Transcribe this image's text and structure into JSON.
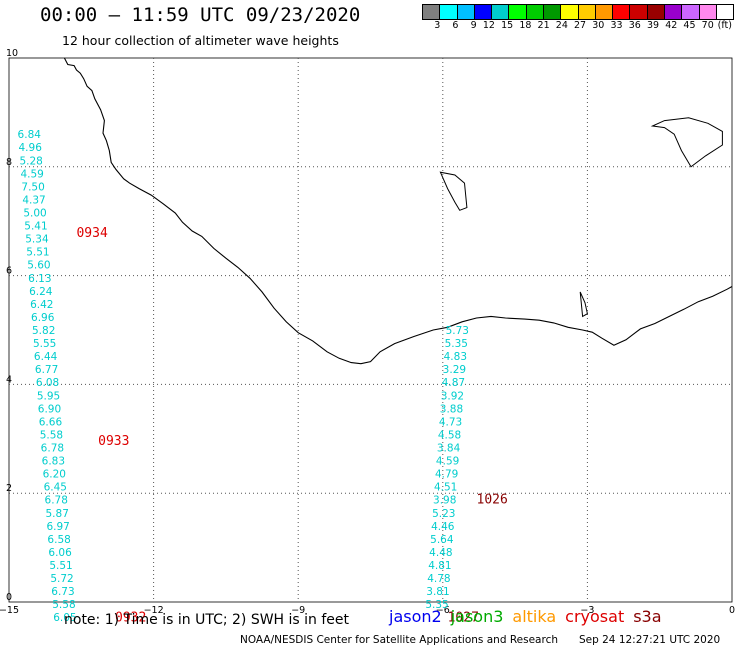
{
  "header": {
    "title": "00:00 – 11:59 UTC 09/23/2020",
    "subtitle": "12 hour collection of altimeter wave heights"
  },
  "color_scale": {
    "colors": [
      "#7f7f7f",
      "#00ffff",
      "#00bfff",
      "#0000ff",
      "#00cdcd",
      "#00ff00",
      "#00cc00",
      "#009900",
      "#ffff00",
      "#ffcc00",
      "#ff9900",
      "#ff0000",
      "#cc0000",
      "#990000",
      "#9900cc",
      "#cc66ff",
      "#ff88ee",
      "#ffffff"
    ],
    "labels": [
      "3",
      "6",
      "9",
      "12",
      "15",
      "18",
      "21",
      "24",
      "27",
      "30",
      "33",
      "36",
      "39",
      "42",
      "45",
      "70",
      "(ft)"
    ]
  },
  "axes": {
    "x_ticks": [
      "−15",
      "−12",
      "−9",
      "−6",
      "−3",
      "0"
    ],
    "x_values": [
      -15,
      -12,
      -9,
      -6,
      -3,
      0
    ],
    "y_ticks": [
      "0",
      "2",
      "4",
      "6",
      "8",
      "10"
    ],
    "y_values": [
      0,
      2,
      4,
      6,
      8,
      10
    ],
    "x_range": [
      -15,
      0
    ],
    "y_range": [
      0,
      10
    ]
  },
  "tracks": [
    {
      "satellite": "jason3",
      "color": "#00cdcd",
      "points": [
        {
          "lon": -14.58,
          "lat": 8.6,
          "swh": "6.84"
        },
        {
          "lon": -14.56,
          "lat": 8.36,
          "swh": "4.96"
        },
        {
          "lon": -14.54,
          "lat": 8.12,
          "swh": "5.28"
        },
        {
          "lon": -14.52,
          "lat": 7.88,
          "swh": "4.59"
        },
        {
          "lon": -14.5,
          "lat": 7.64,
          "swh": "7.50"
        },
        {
          "lon": -14.48,
          "lat": 7.4,
          "swh": "4.37"
        },
        {
          "lon": -14.46,
          "lat": 7.16,
          "swh": "5.00"
        },
        {
          "lon": -14.44,
          "lat": 6.92,
          "swh": "5.41"
        },
        {
          "lon": -14.42,
          "lat": 6.68,
          "swh": "5.34"
        },
        {
          "lon": -14.4,
          "lat": 6.44,
          "swh": "5.51"
        },
        {
          "lon": -14.38,
          "lat": 6.2,
          "swh": "5.60"
        },
        {
          "lon": -14.36,
          "lat": 5.96,
          "swh": "6.13"
        },
        {
          "lon": -14.34,
          "lat": 5.72,
          "swh": "6.24"
        },
        {
          "lon": -14.32,
          "lat": 5.48,
          "swh": "6.42"
        },
        {
          "lon": -14.3,
          "lat": 5.24,
          "swh": "6.96"
        },
        {
          "lon": -14.28,
          "lat": 5.0,
          "swh": "5.82"
        },
        {
          "lon": -14.26,
          "lat": 4.76,
          "swh": "5.55"
        },
        {
          "lon": -14.24,
          "lat": 4.52,
          "swh": "6.44"
        },
        {
          "lon": -14.22,
          "lat": 4.28,
          "swh": "6.77"
        },
        {
          "lon": -14.2,
          "lat": 4.04,
          "swh": "6.08"
        },
        {
          "lon": -14.18,
          "lat": 3.8,
          "swh": "5.95"
        },
        {
          "lon": -14.16,
          "lat": 3.56,
          "swh": "6.90"
        },
        {
          "lon": -14.14,
          "lat": 3.32,
          "swh": "6.66"
        },
        {
          "lon": -14.12,
          "lat": 3.08,
          "swh": "5.58"
        },
        {
          "lon": -14.1,
          "lat": 2.84,
          "swh": "6.78"
        },
        {
          "lon": -14.08,
          "lat": 2.6,
          "swh": "6.83"
        },
        {
          "lon": -14.06,
          "lat": 2.36,
          "swh": "6.20"
        },
        {
          "lon": -14.04,
          "lat": 2.12,
          "swh": "6.45"
        },
        {
          "lon": -14.02,
          "lat": 1.88,
          "swh": "6.78"
        },
        {
          "lon": -14.0,
          "lat": 1.64,
          "swh": "5.87"
        },
        {
          "lon": -13.98,
          "lat": 1.4,
          "swh": "6.97"
        },
        {
          "lon": -13.96,
          "lat": 1.16,
          "swh": "6.58"
        },
        {
          "lon": -13.94,
          "lat": 0.92,
          "swh": "6.06"
        },
        {
          "lon": -13.92,
          "lat": 0.68,
          "swh": "5.51"
        },
        {
          "lon": -13.9,
          "lat": 0.44,
          "swh": "5.72"
        },
        {
          "lon": -13.88,
          "lat": 0.2,
          "swh": "6.73"
        },
        {
          "lon": -13.86,
          "lat": -0.04,
          "swh": "5.58"
        },
        {
          "lon": -13.84,
          "lat": -0.28,
          "swh": "6.05"
        }
      ]
    },
    {
      "satellite": "jason3",
      "color": "#00cdcd",
      "points": [
        {
          "lon": -5.7,
          "lat": 5.0,
          "swh": "5.73"
        },
        {
          "lon": -5.72,
          "lat": 4.76,
          "swh": "5.35"
        },
        {
          "lon": -5.74,
          "lat": 4.52,
          "swh": "4.83"
        },
        {
          "lon": -5.76,
          "lat": 4.28,
          "swh": "3.29"
        },
        {
          "lon": -5.78,
          "lat": 4.04,
          "swh": "4.87"
        },
        {
          "lon": -5.8,
          "lat": 3.8,
          "swh": "3.92"
        },
        {
          "lon": -5.82,
          "lat": 3.56,
          "swh": "3.88"
        },
        {
          "lon": -5.84,
          "lat": 3.32,
          "swh": "4.73"
        },
        {
          "lon": -5.86,
          "lat": 3.08,
          "swh": "4.58"
        },
        {
          "lon": -5.88,
          "lat": 2.84,
          "swh": "3.84"
        },
        {
          "lon": -5.9,
          "lat": 2.6,
          "swh": "4.59"
        },
        {
          "lon": -5.92,
          "lat": 2.36,
          "swh": "4.79"
        },
        {
          "lon": -5.94,
          "lat": 2.12,
          "swh": "4.51"
        },
        {
          "lon": -5.96,
          "lat": 1.88,
          "swh": "3.98"
        },
        {
          "lon": -5.98,
          "lat": 1.64,
          "swh": "5.23"
        },
        {
          "lon": -6.0,
          "lat": 1.4,
          "swh": "4.46"
        },
        {
          "lon": -6.02,
          "lat": 1.16,
          "swh": "5.64"
        },
        {
          "lon": -6.04,
          "lat": 0.92,
          "swh": "4.48"
        },
        {
          "lon": -6.06,
          "lat": 0.68,
          "swh": "4.81"
        },
        {
          "lon": -6.08,
          "lat": 0.44,
          "swh": "4.78"
        },
        {
          "lon": -6.1,
          "lat": 0.2,
          "swh": "3.81"
        },
        {
          "lon": -6.12,
          "lat": -0.04,
          "swh": "5.35"
        }
      ]
    }
  ],
  "time_labels": [
    {
      "text": "0934",
      "lon": -13.6,
      "lat": 6.8,
      "color": "#dd0000"
    },
    {
      "text": "0933",
      "lon": -13.15,
      "lat": 2.98,
      "color": "#dd0000"
    },
    {
      "text": "0932",
      "lon": -12.8,
      "lat": -0.27,
      "color": "#dd0000"
    },
    {
      "text": "1026",
      "lon": -5.3,
      "lat": 1.9,
      "color": "#880000"
    },
    {
      "text": "1027",
      "lon": -5.9,
      "lat": -0.27,
      "color": "#880000"
    }
  ],
  "coastline": [
    [
      -13.85,
      10.0
    ],
    [
      -13.78,
      9.88
    ],
    [
      -13.65,
      9.86
    ],
    [
      -13.6,
      9.78
    ],
    [
      -13.52,
      9.72
    ],
    [
      -13.45,
      9.62
    ],
    [
      -13.38,
      9.48
    ],
    [
      -13.28,
      9.4
    ],
    [
      -13.22,
      9.25
    ],
    [
      -13.1,
      9.05
    ],
    [
      -13.02,
      8.85
    ],
    [
      -13.05,
      8.62
    ],
    [
      -12.98,
      8.48
    ],
    [
      -12.92,
      8.3
    ],
    [
      -12.88,
      8.08
    ],
    [
      -12.78,
      7.95
    ],
    [
      -12.62,
      7.78
    ],
    [
      -12.5,
      7.7
    ],
    [
      -12.3,
      7.6
    ],
    [
      -12.05,
      7.48
    ],
    [
      -11.8,
      7.32
    ],
    [
      -11.55,
      7.15
    ],
    [
      -11.4,
      6.98
    ],
    [
      -11.2,
      6.82
    ],
    [
      -11.0,
      6.72
    ],
    [
      -10.75,
      6.5
    ],
    [
      -10.5,
      6.32
    ],
    [
      -10.25,
      6.15
    ],
    [
      -10.0,
      5.95
    ],
    [
      -9.75,
      5.7
    ],
    [
      -9.5,
      5.4
    ],
    [
      -9.25,
      5.15
    ],
    [
      -9.0,
      4.95
    ],
    [
      -8.7,
      4.8
    ],
    [
      -8.4,
      4.6
    ],
    [
      -8.15,
      4.48
    ],
    [
      -7.9,
      4.4
    ],
    [
      -7.7,
      4.38
    ],
    [
      -7.5,
      4.42
    ],
    [
      -7.3,
      4.6
    ],
    [
      -7.0,
      4.75
    ],
    [
      -6.6,
      4.88
    ],
    [
      -6.2,
      5.0
    ],
    [
      -5.9,
      5.05
    ],
    [
      -5.6,
      5.15
    ],
    [
      -5.3,
      5.22
    ],
    [
      -5.0,
      5.25
    ],
    [
      -4.7,
      5.22
    ],
    [
      -4.3,
      5.2
    ],
    [
      -4.0,
      5.18
    ],
    [
      -3.7,
      5.13
    ],
    [
      -3.4,
      5.05
    ],
    [
      -3.1,
      5.0
    ],
    [
      -2.9,
      4.96
    ],
    [
      -2.7,
      4.85
    ],
    [
      -2.45,
      4.72
    ],
    [
      -2.2,
      4.82
    ],
    [
      -1.9,
      5.02
    ],
    [
      -1.6,
      5.12
    ],
    [
      -1.3,
      5.25
    ],
    [
      -1.0,
      5.38
    ],
    [
      -0.7,
      5.52
    ],
    [
      -0.4,
      5.62
    ],
    [
      -0.1,
      5.75
    ],
    [
      0.0,
      5.8
    ]
  ],
  "islands": [
    [
      [
        -6.05,
        7.9
      ],
      [
        -5.9,
        7.6
      ],
      [
        -5.75,
        7.35
      ],
      [
        -5.65,
        7.2
      ],
      [
        -5.5,
        7.25
      ],
      [
        -5.55,
        7.7
      ],
      [
        -5.75,
        7.85
      ],
      [
        -6.05,
        7.9
      ]
    ],
    [
      [
        -3.15,
        5.7
      ],
      [
        -3.05,
        5.5
      ],
      [
        -3.0,
        5.3
      ],
      [
        -3.1,
        5.25
      ],
      [
        -3.15,
        5.7
      ]
    ],
    [
      [
        -1.65,
        8.75
      ],
      [
        -1.4,
        8.72
      ],
      [
        -1.2,
        8.6
      ],
      [
        -1.05,
        8.3
      ],
      [
        -0.85,
        8.0
      ],
      [
        -0.55,
        8.2
      ],
      [
        -0.2,
        8.4
      ],
      [
        -0.2,
        8.65
      ],
      [
        -0.5,
        8.8
      ],
      [
        -0.9,
        8.9
      ],
      [
        -1.4,
        8.85
      ],
      [
        -1.65,
        8.75
      ]
    ]
  ],
  "footer": {
    "note": "note: 1) Time is in UTC; 2) SWH is in feet",
    "legend": [
      {
        "name": "jason2",
        "color": "#0000ee"
      },
      {
        "name": "jason3",
        "color": "#00aa00"
      },
      {
        "name": "altika",
        "color": "#ff9900"
      },
      {
        "name": "cryosat",
        "color": "#dd0000"
      },
      {
        "name": "s3a",
        "color": "#880000"
      }
    ],
    "credit": "NOAA/NESDIS Center for Satellite Applications and Research",
    "generated": "Sep 24 12:27:21 UTC 2020"
  }
}
